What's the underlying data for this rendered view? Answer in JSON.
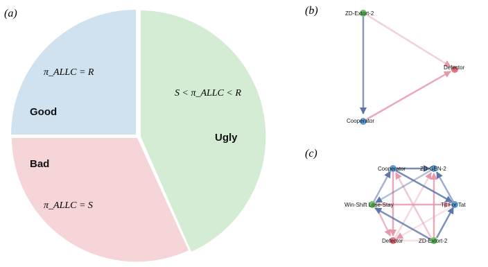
{
  "panels": {
    "a": {
      "label": "(a)",
      "slices": [
        {
          "name": "Good",
          "formula": "π_ALLC = R",
          "color": "#d0e2ef"
        },
        {
          "name": "Ugly",
          "formula": "S < π_ALLC < R",
          "color": "#d5ecd4"
        },
        {
          "name": "Bad",
          "formula": "π_ALLC = S",
          "color": "#f5d5d8"
        }
      ]
    },
    "b": {
      "label": "(b)",
      "nodes": [
        {
          "label": "ZD-Extort-2",
          "color": "#66c065"
        },
        {
          "label": "Defector",
          "color": "#e2737c"
        },
        {
          "label": "Cooperator",
          "color": "#5e9fd8"
        }
      ]
    },
    "c": {
      "label": "(c)",
      "nodes": [
        {
          "label": "Cooperator",
          "color": "#5e9fd8"
        },
        {
          "label": "ZD-GEN-2",
          "color": "#5e9fd8"
        },
        {
          "label": "Win-Shift Lose-Stay",
          "color": "#66c065"
        },
        {
          "label": "Tit For Tat",
          "color": "#5e9fd8"
        },
        {
          "label": "Defector",
          "color": "#e2737c"
        },
        {
          "label": "ZD-Extort-2",
          "color": "#66c065"
        }
      ]
    }
  },
  "colors": {
    "edge_blue": "#5d76a8",
    "edge_pink": "#e59aac"
  }
}
